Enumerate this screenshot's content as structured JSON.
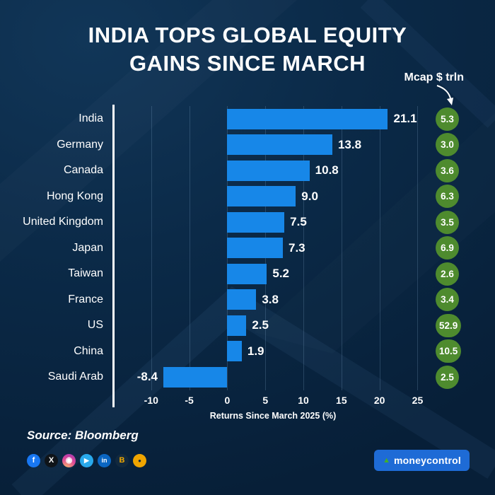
{
  "title": {
    "line1": "INDIA TOPS GLOBAL EQUITY",
    "line2": "GAINS SINCE MARCH"
  },
  "mcap_axis_label": "Mcap $ trln",
  "source": "Source: Bloomberg",
  "logo": {
    "text": "moneycontrol"
  },
  "colors": {
    "background": "#0b2946",
    "bar": "#1787e8",
    "mcap_badge": "#4e8b2e",
    "logo_bg": "#1e6bd6",
    "accent_green": "#43b02a",
    "axis_line": "#ffffff"
  },
  "chart_data": {
    "type": "bar",
    "orientation": "horizontal",
    "title": "INDIA TOPS GLOBAL EQUITY GAINS SINCE MARCH",
    "categories": [
      "India",
      "Germany",
      "Canada",
      "Hong Kong",
      "United Kingdom",
      "Japan",
      "Taiwan",
      "France",
      "US",
      "China",
      "Saudi Arab"
    ],
    "values": [
      21.1,
      13.8,
      10.8,
      9.0,
      7.5,
      7.3,
      5.2,
      3.8,
      2.5,
      1.9,
      -8.4
    ],
    "value_labels": [
      "21.1",
      "13.8",
      "10.8",
      "9.0",
      "7.5",
      "7.3",
      "5.2",
      "3.8",
      "2.5",
      "1.9",
      "-8.4"
    ],
    "mcap_values": [
      5.3,
      3.0,
      3.6,
      6.3,
      3.5,
      6.9,
      2.6,
      3.4,
      52.9,
      10.5,
      2.5
    ],
    "mcap_labels": [
      "5.3",
      "3.0",
      "3.6",
      "6.3",
      "3.5",
      "6.9",
      "2.6",
      "3.4",
      "52.9",
      "10.5",
      "2.5"
    ],
    "xlabel": "Returns Since March 2025 (%)",
    "xticks": [
      -10,
      -5,
      0,
      5,
      10,
      15,
      20,
      25
    ],
    "xtick_labels": [
      "-10",
      "-5",
      "0",
      "5",
      "10",
      "15",
      "20",
      "25"
    ],
    "xlim": [
      -15,
      27
    ],
    "grid": true,
    "legend": "none"
  },
  "social": [
    {
      "name": "facebook",
      "bg": "#1877f2",
      "fg": "#ffffff",
      "glyph": "f"
    },
    {
      "name": "x",
      "bg": "#0f1419",
      "fg": "#ffffff",
      "glyph": "X"
    },
    {
      "name": "instagram",
      "bg": "radial-gradient(circle at 30% 110%, #fdc468 0%, #df4996 55%, #9b36b7 100%)",
      "fg": "#ffffff",
      "glyph": "◉"
    },
    {
      "name": "telegram",
      "bg": "#29a9eb",
      "fg": "#ffffff",
      "glyph": "▶"
    },
    {
      "name": "linkedin",
      "bg": "#0a66c2",
      "fg": "#ffffff",
      "glyph": "in"
    },
    {
      "name": "bitcoin",
      "bg": "#12293e",
      "fg": "#f2a900",
      "glyph": "B"
    },
    {
      "name": "coin",
      "bg": "#f0a500",
      "fg": "#12293e",
      "glyph": "●"
    }
  ]
}
